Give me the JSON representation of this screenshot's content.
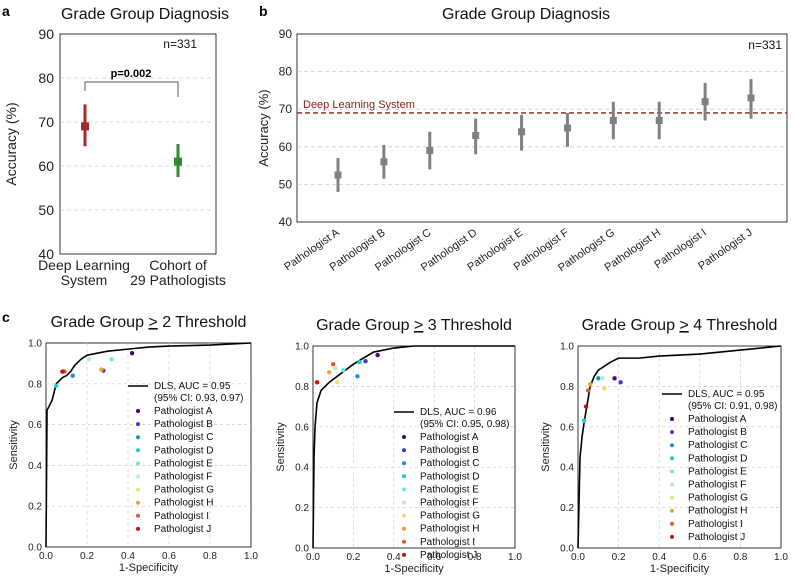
{
  "panel_labels": {
    "a": "a",
    "b": "b",
    "c": "c"
  },
  "colors": {
    "dls": "#a52a2a",
    "cohort": "#2e8b2e",
    "pathologist_bar": "#808080",
    "dls_line": "#8b1a1a",
    "roc": "#000000",
    "grid": "#cccccc",
    "pathologists": [
      "#4b0082",
      "#3a3ad8",
      "#1e90c8",
      "#20c8d0",
      "#6ee8d8",
      "#b8f0c0",
      "#e8e070",
      "#f0a040",
      "#e05a30",
      "#cc1010"
    ]
  },
  "chart_data": [
    {
      "id": "a",
      "type": "scatter",
      "title": "Grade Group Diagnosis",
      "ylabel": "Accuracy (%)",
      "ylim": [
        40,
        90
      ],
      "yticks": [
        "40",
        "50",
        "60",
        "70",
        "80",
        "90"
      ],
      "categories": [
        "Deep Learning\nSystem",
        "Cohort of\n29 Pathologists"
      ],
      "points": [
        {
          "name": "Deep Learning System",
          "value": 69,
          "low": 64.5,
          "high": 74
        },
        {
          "name": "Cohort of 29 Pathologists",
          "value": 61,
          "low": 57.5,
          "high": 65
        }
      ],
      "annotation": "p=0.002",
      "n_label": "n=331"
    },
    {
      "id": "b",
      "type": "scatter",
      "title": "Grade Group Diagnosis",
      "ylabel": "Accuracy (%)",
      "ylim": [
        40,
        90
      ],
      "yticks": [
        "40",
        "50",
        "60",
        "70",
        "80",
        "90"
      ],
      "categories": [
        "Pathologist A",
        "Pathologist B",
        "Pathologist C",
        "Pathologist D",
        "Pathologist E",
        "Pathologist F",
        "Pathologist G",
        "Pathologist H",
        "Pathologist I",
        "Pathologist J"
      ],
      "values": [
        52.5,
        56,
        59,
        63,
        64,
        65,
        67,
        67,
        72,
        73
      ],
      "low": [
        48,
        51.5,
        54,
        58,
        59,
        60,
        62,
        62,
        67,
        67.5
      ],
      "high": [
        57,
        60.5,
        64,
        67.5,
        68.5,
        69,
        72,
        72,
        77,
        78
      ],
      "reference": {
        "label": "Deep Learning System",
        "value": 69
      },
      "n_label": "n=331"
    },
    {
      "id": "c1",
      "type": "line",
      "title": "Grade Group ≥ 2 Threshold",
      "title_prefix": "Grade Group ",
      "title_ge": "2",
      "title_suffix": " Threshold",
      "xlabel": "1-Specificity",
      "ylabel": "Sensitivity",
      "xlim": [
        0,
        1
      ],
      "ylim": [
        0,
        1
      ],
      "xticks": [
        "0.0",
        "0.2",
        "0.4",
        "0.6",
        "0.8",
        "1.0"
      ],
      "yticks": [
        "0.0",
        "0.2",
        "0.4",
        "0.6",
        "0.8",
        "1.0"
      ],
      "roc": [
        [
          0,
          0
        ],
        [
          0.005,
          0.67
        ],
        [
          0.03,
          0.72
        ],
        [
          0.05,
          0.8
        ],
        [
          0.08,
          0.83
        ],
        [
          0.1,
          0.84
        ],
        [
          0.12,
          0.86
        ],
        [
          0.14,
          0.89
        ],
        [
          0.17,
          0.92
        ],
        [
          0.2,
          0.94
        ],
        [
          0.25,
          0.95
        ],
        [
          0.3,
          0.96
        ],
        [
          0.4,
          0.97
        ],
        [
          0.5,
          0.98
        ],
        [
          0.6,
          0.985
        ],
        [
          0.8,
          0.99
        ],
        [
          1,
          1
        ]
      ],
      "legend": {
        "line_label_1": "DLS, AUC = 0.95",
        "line_label_2": "(95% CI: 0.93, 0.97)"
      },
      "pathologists": [
        {
          "name": "Pathologist A",
          "fpr": 0.42,
          "tpr": 0.95
        },
        {
          "name": "Pathologist B",
          "fpr": 0.28,
          "tpr": 0.865
        },
        {
          "name": "Pathologist C",
          "fpr": 0.13,
          "tpr": 0.84
        },
        {
          "name": "Pathologist D",
          "fpr": 0.05,
          "tpr": 0.79
        },
        {
          "name": "Pathologist E",
          "fpr": 0.32,
          "tpr": 0.92
        },
        {
          "name": "Pathologist F",
          "fpr": 0.21,
          "tpr": 0.92
        },
        {
          "name": "Pathologist G",
          "fpr": 0.27,
          "tpr": 0.87
        },
        {
          "name": "Pathologist H",
          "fpr": 0.27,
          "tpr": 0.87
        },
        {
          "name": "Pathologist I",
          "fpr": 0.09,
          "tpr": 0.86
        },
        {
          "name": "Pathologist J",
          "fpr": 0.08,
          "tpr": 0.86
        }
      ]
    },
    {
      "id": "c2",
      "type": "line",
      "title": "Grade Group ≥ 3 Threshold",
      "title_prefix": "Grade Group ",
      "title_ge": "3",
      "title_suffix": " Threshold",
      "xlabel": "1-Specificity",
      "ylabel": "Sensitivity",
      "xlim": [
        0,
        1
      ],
      "ylim": [
        0,
        1
      ],
      "xticks": [
        "0.0",
        "0.2",
        "0.4",
        "0.6",
        "0.8",
        "1.0"
      ],
      "yticks": [
        "0.0",
        "0.2",
        "0.4",
        "0.6",
        "0.8",
        "1.0"
      ],
      "roc": [
        [
          0,
          0
        ],
        [
          0.005,
          0.45
        ],
        [
          0.01,
          0.6
        ],
        [
          0.02,
          0.72
        ],
        [
          0.04,
          0.78
        ],
        [
          0.08,
          0.82
        ],
        [
          0.12,
          0.85
        ],
        [
          0.16,
          0.88
        ],
        [
          0.2,
          0.91
        ],
        [
          0.25,
          0.94
        ],
        [
          0.3,
          0.97
        ],
        [
          0.4,
          0.99
        ],
        [
          0.5,
          1
        ],
        [
          1,
          1
        ]
      ],
      "legend": {
        "line_label_1": "DLS, AUC = 0.96",
        "line_label_2": "(95% CI: 0.95, 0.98)"
      },
      "pathologists": [
        {
          "name": "Pathologist A",
          "fpr": 0.32,
          "tpr": 0.955
        },
        {
          "name": "Pathologist B",
          "fpr": 0.26,
          "tpr": 0.925
        },
        {
          "name": "Pathologist C",
          "fpr": 0.22,
          "tpr": 0.85
        },
        {
          "name": "Pathologist D",
          "fpr": 0.23,
          "tpr": 0.92
        },
        {
          "name": "Pathologist E",
          "fpr": 0.15,
          "tpr": 0.88
        },
        {
          "name": "Pathologist F",
          "fpr": 0.11,
          "tpr": 0.89
        },
        {
          "name": "Pathologist G",
          "fpr": 0.12,
          "tpr": 0.82
        },
        {
          "name": "Pathologist H",
          "fpr": 0.08,
          "tpr": 0.87
        },
        {
          "name": "Pathologist I",
          "fpr": 0.1,
          "tpr": 0.91
        },
        {
          "name": "Pathologist J",
          "fpr": 0.02,
          "tpr": 0.82
        }
      ]
    },
    {
      "id": "c3",
      "type": "line",
      "title": "Grade Group ≥ 4 Threshold",
      "title_prefix": "Grade Group ",
      "title_ge": "4",
      "title_suffix": " Threshold",
      "xlabel": "1-Specificity",
      "ylabel": "Sensitivity",
      "xlim": [
        0,
        1
      ],
      "ylim": [
        0,
        1
      ],
      "xticks": [
        "0.0",
        "0.2",
        "0.4",
        "0.6",
        "0.8",
        "1.0"
      ],
      "yticks": [
        "0.0",
        "0.2",
        "0.4",
        "0.6",
        "0.8",
        "1.0"
      ],
      "roc": [
        [
          0,
          0
        ],
        [
          0.01,
          0.45
        ],
        [
          0.02,
          0.55
        ],
        [
          0.03,
          0.62
        ],
        [
          0.04,
          0.68
        ],
        [
          0.05,
          0.74
        ],
        [
          0.06,
          0.8
        ],
        [
          0.08,
          0.85
        ],
        [
          0.1,
          0.88
        ],
        [
          0.13,
          0.9
        ],
        [
          0.16,
          0.92
        ],
        [
          0.2,
          0.94
        ],
        [
          0.3,
          0.94
        ],
        [
          0.4,
          0.95
        ],
        [
          0.6,
          0.96
        ],
        [
          0.8,
          0.98
        ],
        [
          1,
          1
        ]
      ],
      "legend": {
        "line_label_1": "DLS, AUC = 0.95",
        "line_label_2": "(95% CI: 0.91, 0.98)"
      },
      "pathologists": [
        {
          "name": "Pathologist A",
          "fpr": 0.18,
          "tpr": 0.84
        },
        {
          "name": "Pathologist B",
          "fpr": 0.21,
          "tpr": 0.82
        },
        {
          "name": "Pathologist C",
          "fpr": 0.1,
          "tpr": 0.84
        },
        {
          "name": "Pathologist D",
          "fpr": 0.03,
          "tpr": 0.63
        },
        {
          "name": "Pathologist E",
          "fpr": 0.12,
          "tpr": 0.84
        },
        {
          "name": "Pathologist F",
          "fpr": 0.12,
          "tpr": 0.84
        },
        {
          "name": "Pathologist G",
          "fpr": 0.13,
          "tpr": 0.79
        },
        {
          "name": "Pathologist H",
          "fpr": 0.06,
          "tpr": 0.81
        },
        {
          "name": "Pathologist I",
          "fpr": 0.05,
          "tpr": 0.78
        },
        {
          "name": "Pathologist J",
          "fpr": 0.04,
          "tpr": 0.7
        }
      ]
    }
  ]
}
